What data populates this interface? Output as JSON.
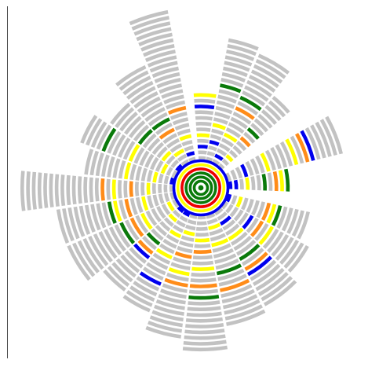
{
  "diagram": {
    "type": "radial-ring-sunburst",
    "ring_colors": {
      "gray": "#c2c2c2",
      "yellow": "#ffff00",
      "orange": "#ff8c19",
      "green": "#0a7a0a",
      "blue": "#0000ee",
      "red": "#ee0000"
    },
    "core_ring_colors": [
      "green",
      "green",
      "green",
      "red",
      "yellow",
      "blue"
    ],
    "sectors": [
      {
        "angle_from": -95,
        "angle_to": -80,
        "ring_colors": [
          "gray",
          "gray",
          "blue",
          "gray",
          "yellow",
          "gray",
          "gray",
          "gray",
          "gray",
          "blue",
          "gray",
          "yellow"
        ]
      },
      {
        "angle_from": -80,
        "angle_to": -67,
        "ring_colors": [
          "gray",
          "gray",
          "gray",
          "blue",
          "gray",
          "gray",
          "yellow",
          "gray",
          "gray",
          "gray",
          "gray",
          "gray",
          "gray",
          "green",
          "gray",
          "gray",
          "gray",
          "gray",
          "gray",
          "gray",
          "gray",
          "gray"
        ]
      },
      {
        "angle_from": -67,
        "angle_to": -52,
        "ring_colors": [
          "gray",
          "blue",
          "gray",
          "gray",
          "gray",
          "yellow",
          "gray",
          "gray",
          "gray",
          "gray",
          "orange",
          "gray",
          "green",
          "gray",
          "gray",
          "gray",
          "gray",
          "gray",
          "gray",
          "gray",
          "gray"
        ]
      },
      {
        "angle_from": -52,
        "angle_to": -40,
        "ring_colors": [
          "gray",
          "gray",
          "yellow",
          "gray",
          "gray",
          "gray",
          "orange",
          "gray",
          "green",
          "gray",
          "gray",
          "gray",
          "gray",
          "gray",
          "gray",
          "gray"
        ]
      },
      {
        "angle_from": -30,
        "angle_to": -13,
        "ring_colors": [
          "gray",
          "gray",
          "gray",
          "blue",
          "gray",
          "gray",
          "gray",
          "yellow",
          "gray",
          "gray",
          "gray",
          "gray",
          "yellow",
          "gray",
          "orange",
          "blue",
          "gray",
          "gray",
          "gray",
          "gray",
          "gray"
        ]
      },
      {
        "angle_from": -13,
        "angle_to": 3,
        "ring_colors": [
          "blue",
          "blue",
          "gray",
          "yellow",
          "gray",
          "gray",
          "green",
          "gray",
          "orange",
          "yellow",
          "green"
        ]
      },
      {
        "angle_from": 12,
        "angle_to": 28,
        "ring_colors": [
          "blue",
          "gray",
          "yellow",
          "gray",
          "gray",
          "gray",
          "gray",
          "orange",
          "yellow",
          "green",
          "gray",
          "gray",
          "gray",
          "gray",
          "gray"
        ]
      },
      {
        "angle_from": 28,
        "angle_to": 44,
        "ring_colors": [
          "gray",
          "gray",
          "gray",
          "gray",
          "gray",
          "blue",
          "gray",
          "orange",
          "gray",
          "yellow",
          "gray",
          "gray",
          "gray",
          "gray",
          "gray",
          "gray",
          "gray"
        ]
      },
      {
        "angle_from": 44,
        "angle_to": 62,
        "ring_colors": [
          "gray",
          "gray",
          "blue",
          "gray",
          "gray",
          "yellow",
          "gray",
          "gray",
          "gray",
          "green",
          "gray",
          "orange",
          "blue",
          "gray",
          "gray",
          "gray",
          "gray",
          "gray",
          "gray"
        ]
      },
      {
        "angle_from": 62,
        "angle_to": 80,
        "ring_colors": [
          "gray",
          "gray",
          "yellow",
          "gray",
          "gray",
          "yellow",
          "gray",
          "gray",
          "gray",
          "gray",
          "green",
          "gray",
          "gray",
          "orange",
          "gray",
          "gray",
          "gray",
          "gray",
          "gray",
          "gray"
        ]
      },
      {
        "angle_from": 80,
        "angle_to": 97,
        "ring_colors": [
          "gray",
          "gray",
          "gray",
          "gray",
          "yellow",
          "gray",
          "orange",
          "gray",
          "gray",
          "yellow",
          "gray",
          "gray",
          "orange",
          "gray",
          "green",
          "gray",
          "gray",
          "gray",
          "gray",
          "gray",
          "gray",
          "gray",
          "gray",
          "gray"
        ]
      },
      {
        "angle_from": 97,
        "angle_to": 112,
        "ring_colors": [
          "gray",
          "gray",
          "gray",
          "yellow",
          "gray",
          "gray",
          "gray",
          "orange",
          "gray",
          "gray",
          "yellow",
          "gray",
          "orange",
          "gray",
          "gray",
          "gray",
          "gray",
          "gray",
          "gray",
          "gray",
          "gray",
          "gray"
        ]
      },
      {
        "angle_from": 112,
        "angle_to": 126,
        "ring_colors": [
          "blue",
          "gray",
          "gray",
          "gray",
          "yellow",
          "gray",
          "gray",
          "gray",
          "yellow",
          "gray",
          "gray",
          "gray",
          "gray",
          "blue",
          "gray",
          "gray",
          "gray",
          "gray",
          "gray"
        ]
      },
      {
        "angle_from": 126,
        "angle_to": 140,
        "ring_colors": [
          "blue",
          "gray",
          "yellow",
          "gray",
          "gray",
          "gray",
          "gray",
          "green",
          "gray",
          "orange",
          "blue",
          "gray",
          "gray",
          "gray",
          "gray",
          "gray",
          "gray",
          "gray"
        ]
      },
      {
        "angle_from": 140,
        "angle_to": 157,
        "ring_colors": [
          "gray",
          "yellow",
          "gray",
          "gray",
          "gray",
          "gray",
          "yellow",
          "gray",
          "orange",
          "gray",
          "green",
          "gray",
          "gray",
          "gray",
          "gray",
          "gray",
          "gray",
          "gray",
          "gray",
          "gray",
          "gray"
        ]
      },
      {
        "angle_from": 157,
        "angle_to": 172,
        "ring_colors": [
          "gray",
          "gray",
          "gray",
          "gray",
          "gray",
          "yellow",
          "gray",
          "gray",
          "orange",
          "gray",
          "yellow",
          "green",
          "gray",
          "gray",
          "gray",
          "gray",
          "gray",
          "gray",
          "gray",
          "gray",
          "gray"
        ]
      },
      {
        "angle_from": 172,
        "angle_to": 186,
        "ring_colors": [
          "gray",
          "gray",
          "gray",
          "gray",
          "yellow",
          "gray",
          "gray",
          "orange",
          "gray",
          "gray",
          "yellow",
          "gray",
          "orange",
          "gray",
          "gray",
          "gray",
          "gray",
          "gray",
          "gray",
          "gray",
          "gray",
          "gray",
          "gray",
          "gray",
          "gray",
          "gray",
          "gray"
        ]
      },
      {
        "angle_from": 186,
        "angle_to": 200,
        "ring_colors": [
          "blue",
          "gray",
          "gray",
          "yellow",
          "gray",
          "gray",
          "gray",
          "gray",
          "yellow",
          "gray",
          "gray",
          "gray",
          "gray",
          "gray",
          "gray",
          "gray"
        ]
      },
      {
        "angle_from": 200,
        "angle_to": 215,
        "ring_colors": [
          "gray",
          "gray",
          "yellow",
          "gray",
          "gray",
          "gray",
          "gray",
          "gray",
          "yellow",
          "gray",
          "gray",
          "gray",
          "gray",
          "green",
          "gray",
          "gray",
          "gray",
          "gray"
        ]
      },
      {
        "angle_from": 215,
        "angle_to": 230,
        "ring_colors": [
          "blue",
          "gray",
          "gray",
          "yellow",
          "gray",
          "gray",
          "gray",
          "gray",
          "green",
          "gray",
          "gray",
          "gray",
          "gray",
          "gray",
          "gray"
        ]
      },
      {
        "angle_from": 230,
        "angle_to": 246,
        "ring_colors": [
          "gray",
          "gray",
          "yellow",
          "gray",
          "gray",
          "gray",
          "orange",
          "gray",
          "green",
          "gray",
          "gray",
          "gray",
          "gray",
          "gray",
          "gray",
          "gray",
          "gray",
          "gray",
          "gray"
        ]
      },
      {
        "angle_from": 246,
        "angle_to": 260,
        "ring_colors": [
          "gray",
          "blue",
          "gray",
          "gray",
          "yellow",
          "gray",
          "gray",
          "gray",
          "gray",
          "orange",
          "gray",
          "gray",
          "gray",
          "gray",
          "gray",
          "gray",
          "gray",
          "gray",
          "gray",
          "gray",
          "gray",
          "gray",
          "gray",
          "gray",
          "gray",
          "gray",
          "gray"
        ]
      }
    ]
  }
}
